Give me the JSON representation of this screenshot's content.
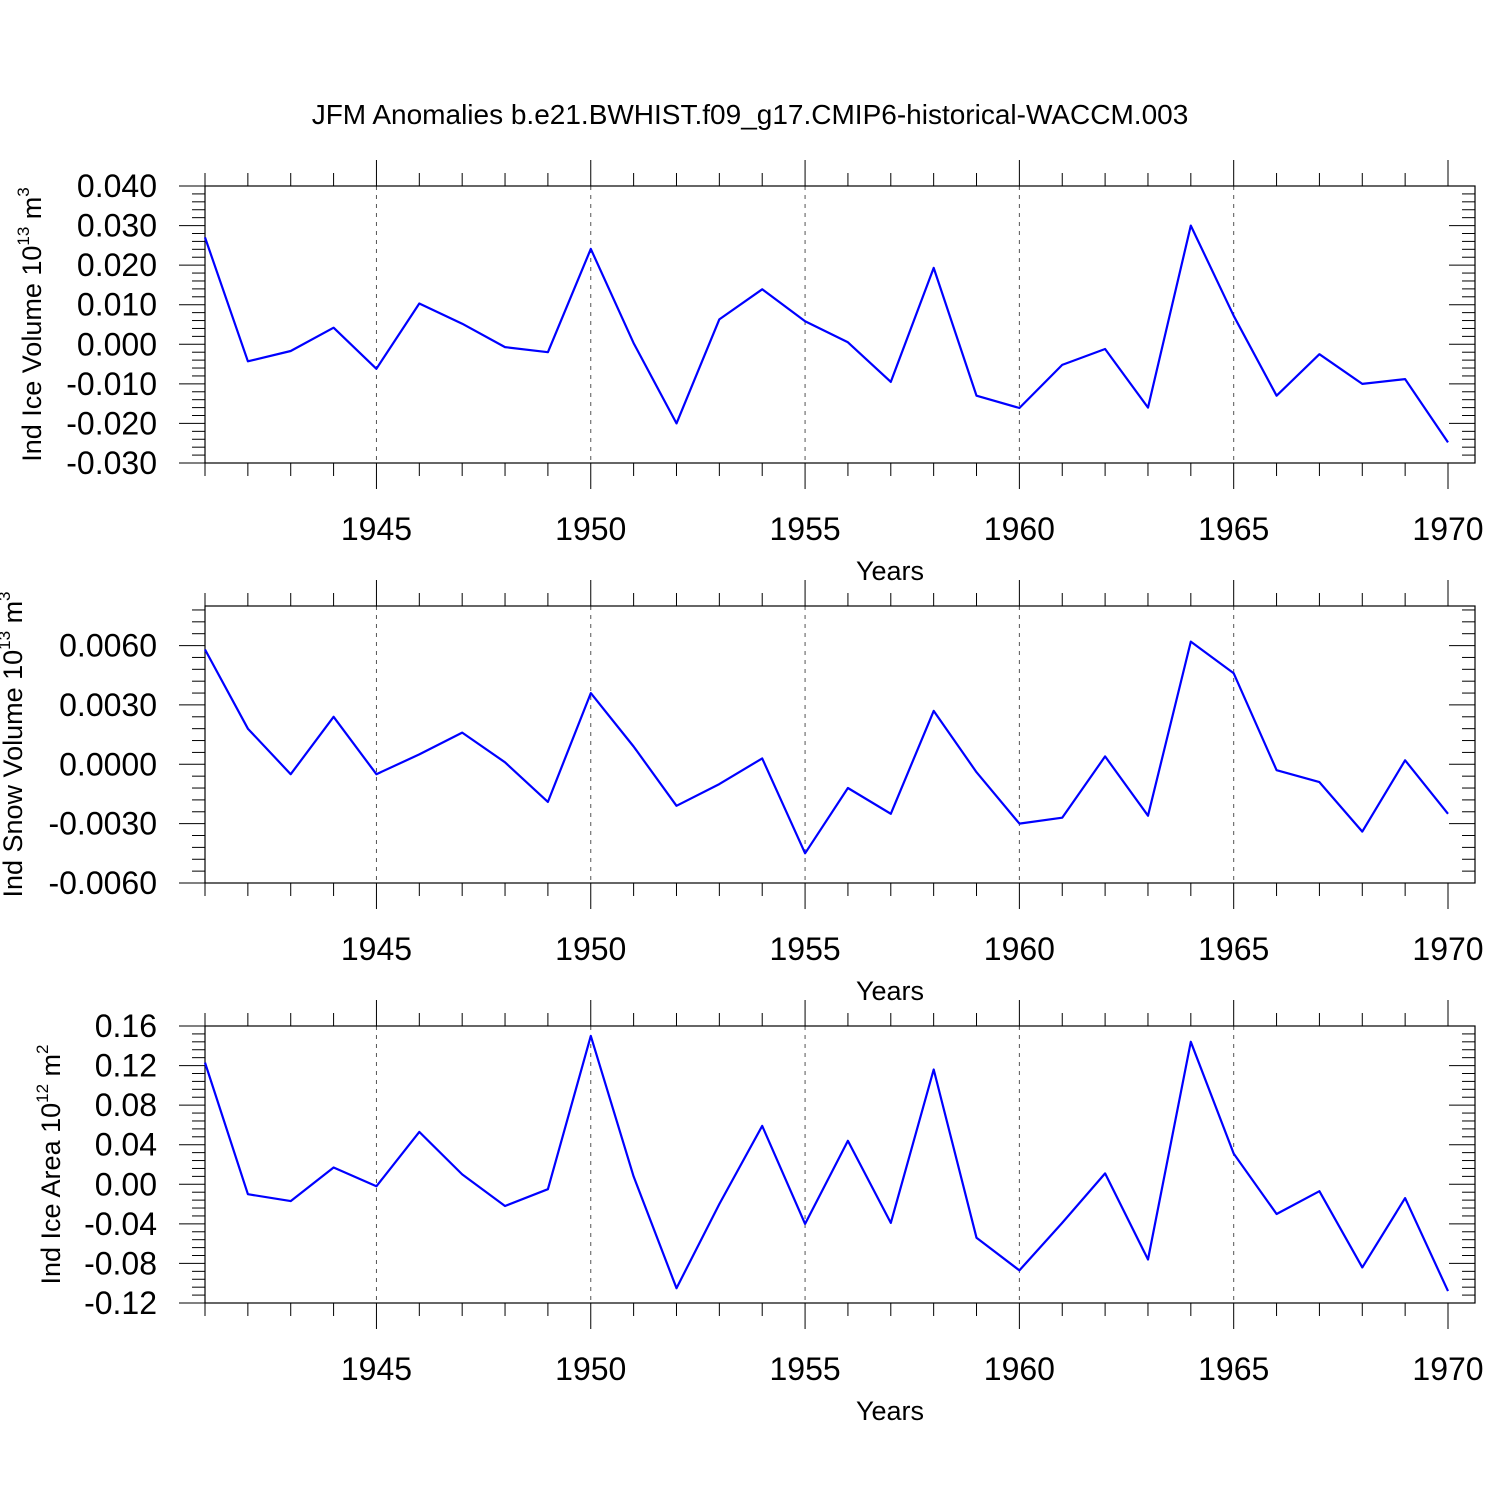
{
  "title": "JFM Anomalies b.e21.BWHIST.f09_g17.CMIP6-historical-WACCM.003",
  "colors": {
    "line": "#0000ff",
    "axes": "#000000",
    "grid": "#555555"
  },
  "chart_data": [
    {
      "type": "line",
      "ylabel": "Ind Ice Volume 10",
      "ylabel_sup": "13",
      "ylabel_unit": " m",
      "ylabel_unit_sup": "3",
      "xlabel": "Years",
      "xlim": [
        1941,
        1970
      ],
      "ylim": [
        -0.03,
        0.04
      ],
      "yticks": [
        "0.040",
        "0.030",
        "0.020",
        "0.010",
        "0.000",
        "-0.010",
        "-0.020",
        "-0.030"
      ],
      "xticks": [
        "1945",
        "1950",
        "1955",
        "1960",
        "1965",
        "1970"
      ],
      "grid": "vertical dashed at major x ticks",
      "x": [
        1941,
        1942,
        1943,
        1944,
        1945,
        1946,
        1947,
        1948,
        1949,
        1950,
        1951,
        1952,
        1953,
        1954,
        1955,
        1956,
        1957,
        1958,
        1959,
        1960,
        1961,
        1962,
        1963,
        1964,
        1965,
        1966,
        1967,
        1968,
        1969,
        1970
      ],
      "values": [
        0.027,
        -0.0043,
        -0.0017,
        0.0042,
        -0.0062,
        0.0103,
        0.0052,
        -0.0007,
        -0.002,
        0.0241,
        0.0003,
        -0.02,
        0.0063,
        0.0139,
        0.0058,
        0.0005,
        -0.0095,
        0.0193,
        -0.013,
        -0.0161,
        -0.0052,
        -0.0012,
        -0.016,
        0.03,
        0.0072,
        -0.013,
        -0.0025,
        -0.01,
        -0.0088,
        -0.0248
      ]
    },
    {
      "type": "line",
      "ylabel": "Ind Snow Volume 10",
      "ylabel_sup": "13",
      "ylabel_unit": " m",
      "ylabel_unit_sup": "3",
      "xlabel": "Years",
      "xlim": [
        1941,
        1970
      ],
      "ylim": [
        -0.006,
        0.008
      ],
      "yticks": [
        "0.0060",
        "0.0030",
        "0.0000",
        "-0.0030",
        "-0.0060"
      ],
      "xticks": [
        "1945",
        "1950",
        "1955",
        "1960",
        "1965",
        "1970"
      ],
      "grid": "vertical dashed at major x ticks",
      "x": [
        1941,
        1942,
        1943,
        1944,
        1945,
        1946,
        1947,
        1948,
        1949,
        1950,
        1951,
        1952,
        1953,
        1954,
        1955,
        1956,
        1957,
        1958,
        1959,
        1960,
        1961,
        1962,
        1963,
        1964,
        1965,
        1966,
        1967,
        1968,
        1969,
        1970
      ],
      "values": [
        0.0058,
        0.0018,
        -0.0005,
        0.0024,
        -0.0005,
        0.0005,
        0.0016,
        0.0001,
        -0.0019,
        0.0036,
        0.0009,
        -0.0021,
        -0.001,
        0.0003,
        -0.0045,
        -0.0012,
        -0.0025,
        0.0027,
        -0.0004,
        -0.003,
        -0.0027,
        0.0004,
        -0.0026,
        0.0062,
        0.0046,
        -0.0003,
        -0.0009,
        -0.0034,
        0.0002,
        -0.0025
      ]
    },
    {
      "type": "line",
      "ylabel": "Ind Ice Area 10",
      "ylabel_sup": "12",
      "ylabel_unit": " m",
      "ylabel_unit_sup": "2",
      "xlabel": "Years",
      "xlim": [
        1941,
        1970
      ],
      "ylim": [
        -0.12,
        0.16
      ],
      "yticks": [
        "0.16",
        "0.12",
        "0.08",
        "0.04",
        "0.00",
        "-0.04",
        "-0.08",
        "-0.12"
      ],
      "xticks": [
        "1945",
        "1950",
        "1955",
        "1960",
        "1965",
        "1970"
      ],
      "grid": "vertical dashed at major x ticks",
      "x": [
        1941,
        1942,
        1943,
        1944,
        1945,
        1946,
        1947,
        1948,
        1949,
        1950,
        1951,
        1952,
        1953,
        1954,
        1955,
        1956,
        1957,
        1958,
        1959,
        1960,
        1961,
        1962,
        1963,
        1964,
        1965,
        1966,
        1967,
        1968,
        1969,
        1970
      ],
      "values": [
        0.123,
        -0.01,
        -0.017,
        0.017,
        -0.002,
        0.053,
        0.01,
        -0.022,
        -0.005,
        0.15,
        0.008,
        -0.105,
        -0.02,
        0.059,
        -0.04,
        0.044,
        -0.039,
        0.116,
        -0.054,
        -0.087,
        -0.039,
        0.011,
        -0.076,
        0.144,
        0.031,
        -0.03,
        -0.007,
        -0.084,
        -0.014,
        -0.108
      ]
    }
  ]
}
